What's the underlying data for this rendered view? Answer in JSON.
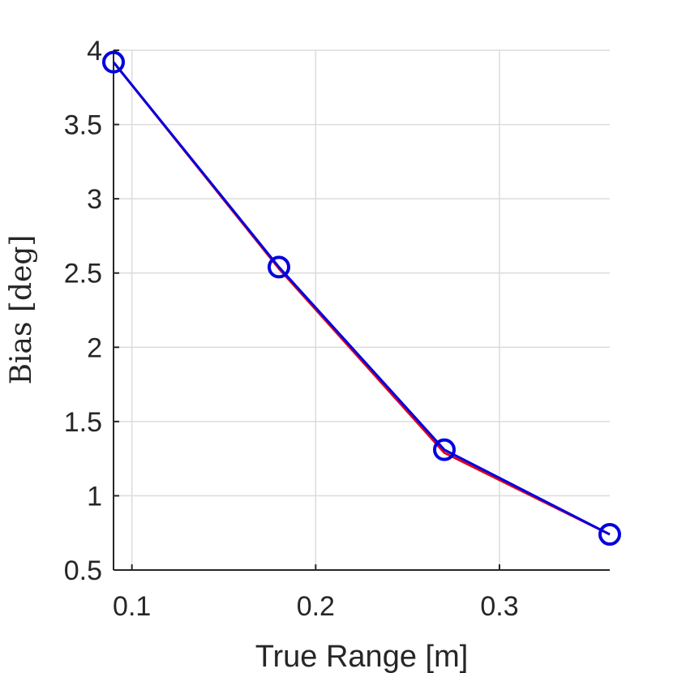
{
  "chart_data": {
    "type": "line",
    "title": "",
    "xlabel": "True Range [m]",
    "ylabel": "Bias [deg]",
    "xlim": [
      0.09,
      0.36
    ],
    "ylim": [
      0.5,
      4
    ],
    "xticks": [
      0.1,
      0.2,
      0.3
    ],
    "xtick_labels": [
      "0.1",
      "0.2",
      "0.3"
    ],
    "yticks": [
      0.5,
      1,
      1.5,
      2,
      2.5,
      3,
      3.5,
      4
    ],
    "ytick_labels": [
      "0.5",
      "1",
      "1.5",
      "2",
      "2.5",
      "3",
      "3.5",
      "4"
    ],
    "grid": true,
    "legend": "none",
    "series": [
      {
        "color": "#e0001a",
        "marker": "none",
        "x": [
          0.09,
          0.18,
          0.27,
          0.36
        ],
        "y": [
          3.92,
          2.53,
          1.29,
          0.74
        ]
      },
      {
        "color": "#0000e0",
        "marker": "circle",
        "x": [
          0.09,
          0.18,
          0.27,
          0.36
        ],
        "y": [
          3.92,
          2.54,
          1.31,
          0.74
        ]
      }
    ]
  }
}
